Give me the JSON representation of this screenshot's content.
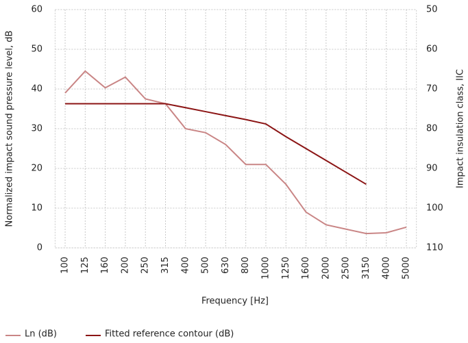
{
  "chart_data": {
    "type": "line",
    "xlabel": "Frequency [Hz]",
    "ylabel": "Normalized impact sound pressure level, dB",
    "y2label": "Impact insulation class, IIC",
    "categories": [
      "100",
      "125",
      "160",
      "200",
      "250",
      "315",
      "400",
      "500",
      "630",
      "800",
      "1000",
      "1250",
      "1600",
      "2000",
      "2500",
      "3150",
      "4000",
      "5000"
    ],
    "series": [
      {
        "name": "Ln (dB)",
        "color": "#c98585",
        "values": [
          39,
          44.5,
          40.3,
          43,
          37.5,
          36.3,
          30,
          29,
          26,
          21,
          21,
          16,
          9,
          5.8,
          4.7,
          3.6,
          3.8,
          5.2
        ]
      },
      {
        "name": "Fitted reference contour (dB)",
        "color": "#8b1414",
        "values": [
          36.3,
          36.3,
          36.3,
          36.3,
          36.3,
          36.3,
          35.3,
          34.3,
          33.3,
          32.3,
          31.2,
          28,
          25,
          22,
          19,
          16,
          null,
          null
        ]
      }
    ],
    "ylim": [
      0,
      60
    ],
    "yticks": [
      0,
      10,
      20,
      30,
      40,
      50,
      60
    ],
    "y2lim": [
      110,
      50
    ],
    "y2ticks": [
      50,
      60,
      70,
      80,
      90,
      100,
      110
    ],
    "grid": true,
    "legend": "bottom"
  }
}
